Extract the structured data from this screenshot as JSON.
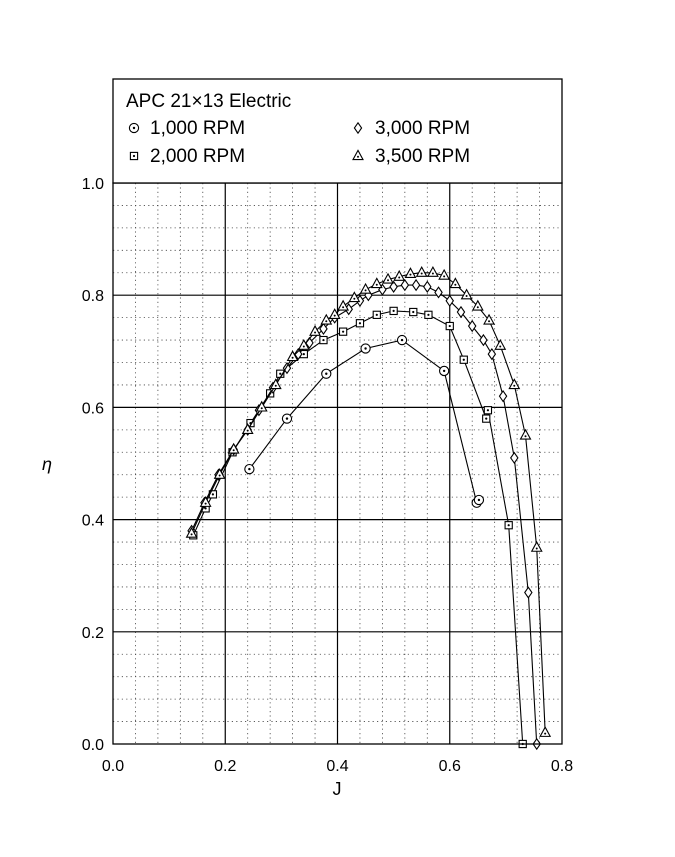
{
  "chart_data": {
    "type": "line",
    "title": "APC 21×13 Electric",
    "xlabel": "J",
    "ylabel": "η",
    "xlim": [
      0.0,
      0.8
    ],
    "ylim": [
      0.0,
      1.0
    ],
    "x_ticks": [
      "0.0",
      "0.2",
      "0.4",
      "0.6",
      "0.8"
    ],
    "y_ticks": [
      "0.0",
      "0.2",
      "0.4",
      "0.6",
      "0.8",
      "1.0"
    ],
    "grid": true,
    "legend_position": "top",
    "series": [
      {
        "name": "1,000 RPM",
        "marker": "circle-dot",
        "points": [
          [
            0.243,
            0.49
          ],
          [
            0.31,
            0.58
          ],
          [
            0.38,
            0.66
          ],
          [
            0.45,
            0.705
          ],
          [
            0.515,
            0.72
          ],
          [
            0.59,
            0.665
          ],
          [
            0.648,
            0.43
          ],
          [
            0.652,
            0.435
          ]
        ]
      },
      {
        "name": "2,000 RPM",
        "marker": "square-dot",
        "points": [
          [
            0.143,
            0.372
          ],
          [
            0.165,
            0.42
          ],
          [
            0.178,
            0.445
          ],
          [
            0.213,
            0.52
          ],
          [
            0.245,
            0.572
          ],
          [
            0.28,
            0.625
          ],
          [
            0.298,
            0.66
          ],
          [
            0.34,
            0.695
          ],
          [
            0.375,
            0.72
          ],
          [
            0.41,
            0.735
          ],
          [
            0.44,
            0.75
          ],
          [
            0.47,
            0.765
          ],
          [
            0.5,
            0.772
          ],
          [
            0.535,
            0.77
          ],
          [
            0.562,
            0.765
          ],
          [
            0.6,
            0.745
          ],
          [
            0.625,
            0.685
          ],
          [
            0.665,
            0.58
          ],
          [
            0.668,
            0.595
          ],
          [
            0.705,
            0.39
          ],
          [
            0.73,
            0.0
          ]
        ]
      },
      {
        "name": "3,000 RPM",
        "marker": "diamond",
        "points": [
          [
            0.14,
            0.38
          ],
          [
            0.163,
            0.43
          ],
          [
            0.188,
            0.48
          ],
          [
            0.215,
            0.525
          ],
          [
            0.24,
            0.56
          ],
          [
            0.26,
            0.595
          ],
          [
            0.285,
            0.635
          ],
          [
            0.31,
            0.67
          ],
          [
            0.33,
            0.695
          ],
          [
            0.35,
            0.715
          ],
          [
            0.375,
            0.74
          ],
          [
            0.395,
            0.76
          ],
          [
            0.42,
            0.775
          ],
          [
            0.44,
            0.79
          ],
          [
            0.455,
            0.8
          ],
          [
            0.48,
            0.81
          ],
          [
            0.5,
            0.815
          ],
          [
            0.52,
            0.818
          ],
          [
            0.54,
            0.818
          ],
          [
            0.56,
            0.815
          ],
          [
            0.58,
            0.805
          ],
          [
            0.6,
            0.79
          ],
          [
            0.62,
            0.77
          ],
          [
            0.64,
            0.745
          ],
          [
            0.66,
            0.72
          ],
          [
            0.675,
            0.695
          ],
          [
            0.695,
            0.62
          ],
          [
            0.715,
            0.51
          ],
          [
            0.74,
            0.27
          ],
          [
            0.755,
            0.0
          ]
        ]
      },
      {
        "name": "3,500 RPM",
        "marker": "triangle-dot",
        "points": [
          [
            0.14,
            0.375
          ],
          [
            0.165,
            0.43
          ],
          [
            0.19,
            0.48
          ],
          [
            0.215,
            0.525
          ],
          [
            0.24,
            0.56
          ],
          [
            0.265,
            0.6
          ],
          [
            0.29,
            0.64
          ],
          [
            0.32,
            0.69
          ],
          [
            0.34,
            0.71
          ],
          [
            0.36,
            0.735
          ],
          [
            0.38,
            0.755
          ],
          [
            0.395,
            0.765
          ],
          [
            0.41,
            0.78
          ],
          [
            0.43,
            0.795
          ],
          [
            0.45,
            0.81
          ],
          [
            0.47,
            0.82
          ],
          [
            0.49,
            0.828
          ],
          [
            0.51,
            0.833
          ],
          [
            0.53,
            0.838
          ],
          [
            0.55,
            0.84
          ],
          [
            0.57,
            0.84
          ],
          [
            0.59,
            0.835
          ],
          [
            0.61,
            0.82
          ],
          [
            0.63,
            0.8
          ],
          [
            0.65,
            0.78
          ],
          [
            0.67,
            0.755
          ],
          [
            0.69,
            0.71
          ],
          [
            0.715,
            0.64
          ],
          [
            0.735,
            0.55
          ],
          [
            0.755,
            0.35
          ],
          [
            0.77,
            0.02
          ]
        ]
      }
    ]
  }
}
